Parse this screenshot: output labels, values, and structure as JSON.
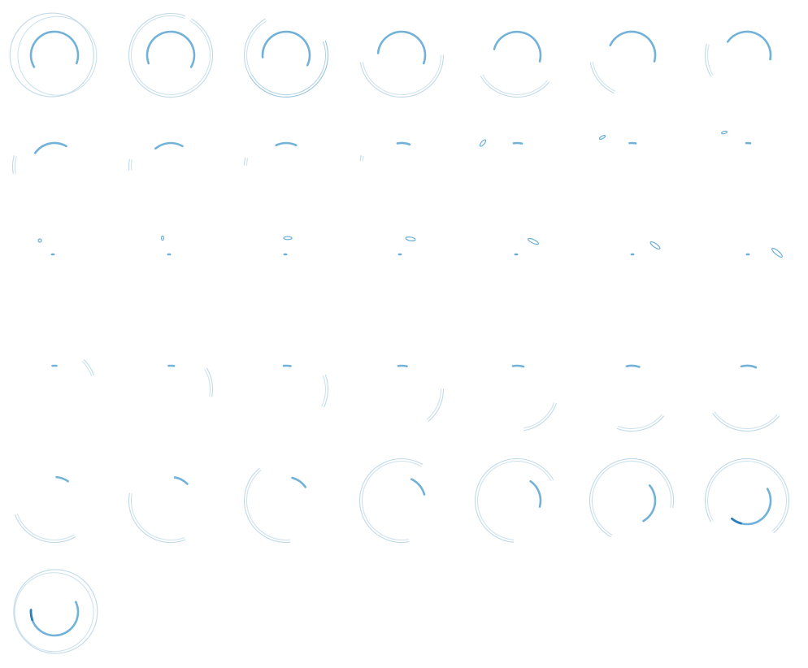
{
  "sprite_sheet": {
    "kind": "loading-spinner-animation-frames",
    "columns": 7,
    "frame_count": 43,
    "colors": {
      "background": "#ffffff",
      "inner_arc": "#6aaed6",
      "outer_arc": "#b9d5e6",
      "outer_arc_strong": "#8fbfdc",
      "dark_accent": "#2c7fb8"
    },
    "icon": "spinner-icon"
  }
}
